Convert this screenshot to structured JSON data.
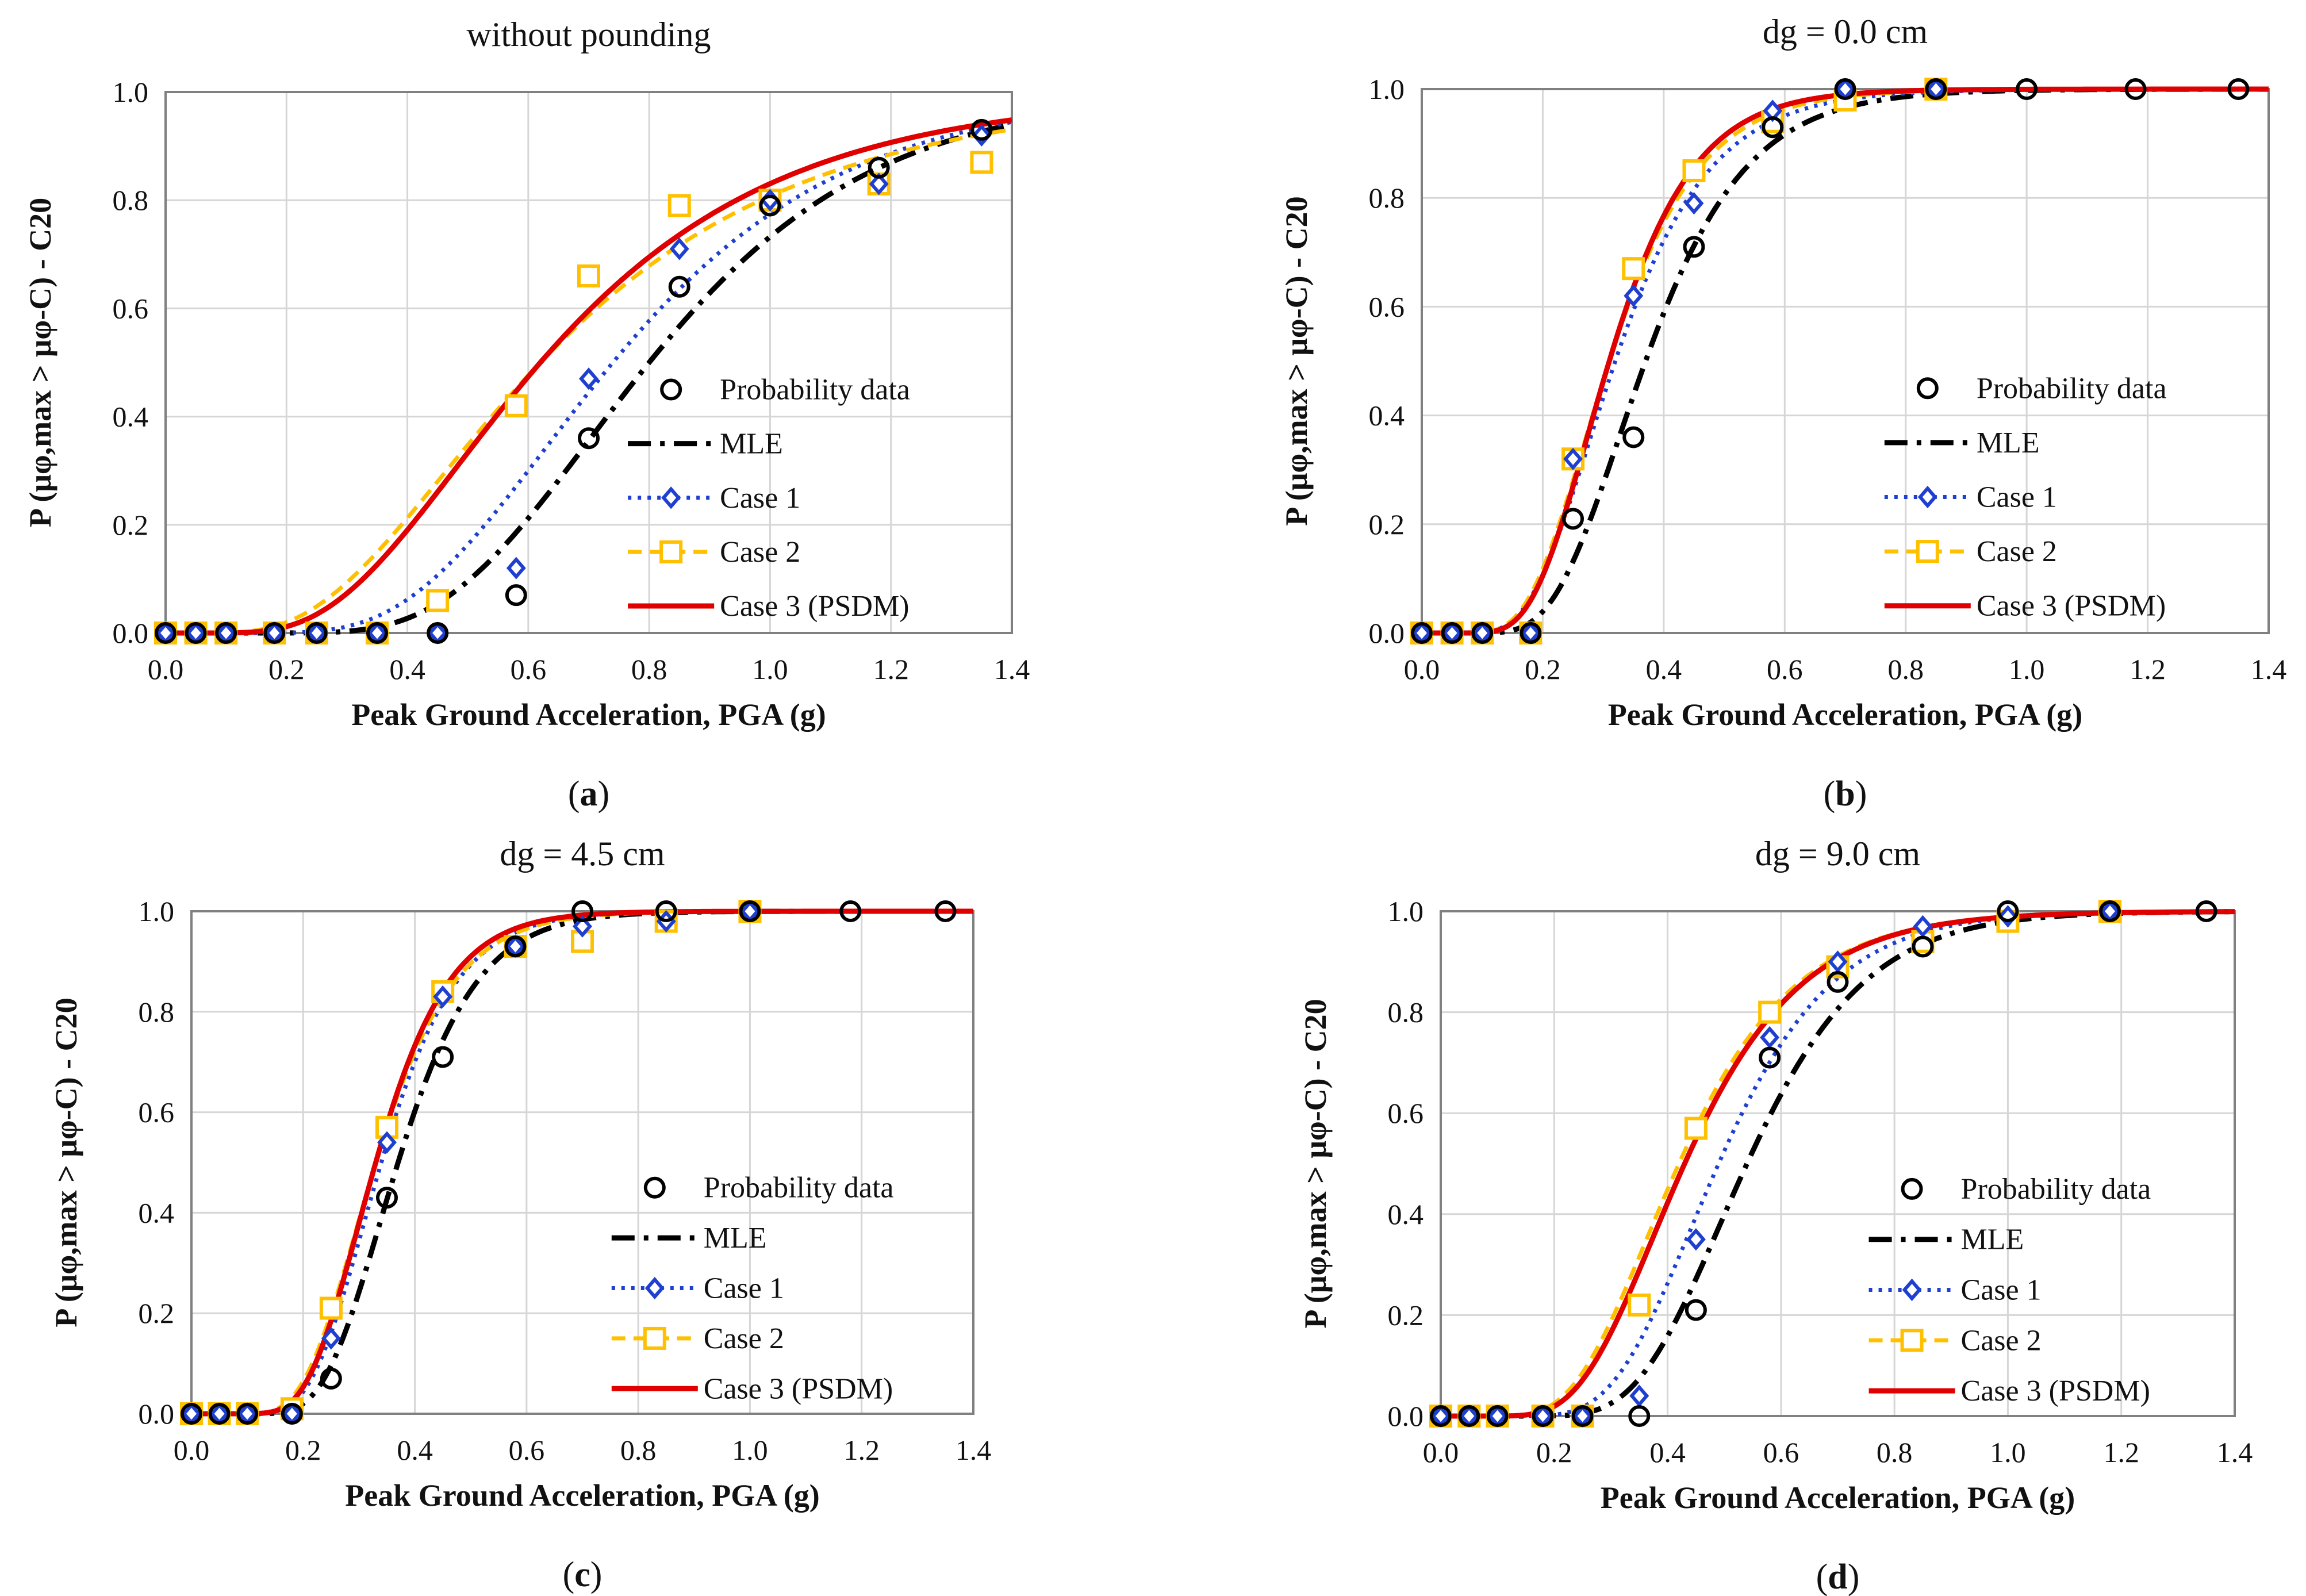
{
  "chart_data": [
    {
      "type": "line",
      "panel_label": "a",
      "title": "without pounding",
      "xlabel": "Peak Ground Acceleration, PGA (g)",
      "ylabel": "P (μφ,max > μφ-C) - C20",
      "xlim": [
        0.0,
        1.4
      ],
      "ylim": [
        0.0,
        1.0
      ],
      "xticks": [
        "0.0",
        "0.2",
        "0.4",
        "0.6",
        "0.8",
        "1.0",
        "1.2",
        "1.4"
      ],
      "yticks": [
        "0.0",
        "0.2",
        "0.4",
        "0.6",
        "0.8",
        "1.0"
      ],
      "grid": true,
      "legend_position": "right",
      "x": [
        0.0,
        0.05,
        0.1,
        0.18,
        0.25,
        0.35,
        0.45,
        0.58,
        0.7,
        0.85,
        1.0,
        1.18,
        1.35
      ],
      "series": [
        {
          "name": "Probability data",
          "kind": "marker",
          "values": [
            0.0,
            0.0,
            0.0,
            0.0,
            0.0,
            0.0,
            0.0,
            0.07,
            0.36,
            0.64,
            0.79,
            0.86,
            0.93
          ]
        },
        {
          "name": "MLE",
          "kind": "curve",
          "median": 0.8,
          "beta": 0.36
        },
        {
          "name": "Case 1",
          "kind": "curve+marker",
          "median": 0.74,
          "beta": 0.4,
          "values": [
            0.0,
            0.0,
            0.0,
            0.0,
            0.0,
            0.0,
            0.0,
            0.12,
            0.47,
            0.71,
            0.8,
            0.83,
            0.92
          ]
        },
        {
          "name": "Case 2",
          "kind": "curve+marker",
          "median": 0.62,
          "beta": 0.55,
          "values": [
            0.0,
            0.0,
            0.0,
            0.0,
            0.0,
            0.0,
            0.06,
            0.42,
            0.66,
            0.79,
            0.8,
            0.83,
            0.87
          ]
        },
        {
          "name": "Case 3 (PSDM)",
          "kind": "curve",
          "median": 0.62,
          "beta": 0.5
        }
      ]
    },
    {
      "type": "line",
      "panel_label": "b",
      "title": "dg = 0.0 cm",
      "xlabel": "Peak Ground Acceleration, PGA (g)",
      "ylabel": "P (μφ,max > μφ-C) - C20",
      "xlim": [
        0.0,
        1.4
      ],
      "ylim": [
        0.0,
        1.0
      ],
      "xticks": [
        "0.0",
        "0.2",
        "0.4",
        "0.6",
        "0.8",
        "1.0",
        "1.2",
        "1.4"
      ],
      "yticks": [
        "0.0",
        "0.2",
        "0.4",
        "0.6",
        "0.8",
        "1.0"
      ],
      "grid": true,
      "legend_position": "right",
      "x": [
        0.0,
        0.05,
        0.1,
        0.18,
        0.25,
        0.35,
        0.45,
        0.58,
        0.7,
        0.85,
        1.0,
        1.18,
        1.35
      ],
      "series": [
        {
          "name": "Probability data",
          "kind": "marker",
          "values": [
            0.0,
            0.0,
            0.0,
            0.0,
            0.21,
            0.36,
            0.71,
            0.93,
            1.0,
            1.0,
            1.0,
            1.0,
            1.0
          ]
        },
        {
          "name": "MLE",
          "kind": "curve",
          "median": 0.37,
          "beta": 0.35
        },
        {
          "name": "Case 1",
          "kind": "curve+marker",
          "median": 0.32,
          "beta": 0.38,
          "values": [
            0.0,
            0.0,
            0.0,
            0.0,
            0.32,
            0.62,
            0.79,
            0.96,
            1.0,
            1.0,
            null,
            null,
            null
          ]
        },
        {
          "name": "Case 2",
          "kind": "curve+marker",
          "median": 0.31,
          "beta": 0.37,
          "values": [
            0.0,
            0.0,
            0.0,
            0.0,
            0.32,
            0.67,
            0.85,
            0.94,
            0.98,
            1.0,
            null,
            null,
            null
          ]
        },
        {
          "name": "Case 3 (PSDM)",
          "kind": "curve",
          "median": 0.31,
          "beta": 0.35
        }
      ]
    },
    {
      "type": "line",
      "panel_label": "c",
      "title": "dg = 4.5 cm",
      "xlabel": "Peak Ground Acceleration, PGA (g)",
      "ylabel": "P (μφ,max > μφ-C) - C20",
      "xlim": [
        0.0,
        1.4
      ],
      "ylim": [
        0.0,
        1.0
      ],
      "xticks": [
        "0.0",
        "0.2",
        "0.4",
        "0.6",
        "0.8",
        "1.0",
        "1.2",
        "1.4"
      ],
      "yticks": [
        "0.0",
        "0.2",
        "0.4",
        "0.6",
        "0.8",
        "1.0"
      ],
      "grid": true,
      "legend_position": "right",
      "x": [
        0.0,
        0.05,
        0.1,
        0.18,
        0.25,
        0.35,
        0.45,
        0.58,
        0.7,
        0.85,
        1.0,
        1.18,
        1.35
      ],
      "series": [
        {
          "name": "Probability data",
          "kind": "marker",
          "values": [
            0.0,
            0.0,
            0.0,
            0.0,
            0.07,
            0.43,
            0.71,
            0.93,
            1.0,
            1.0,
            1.0,
            1.0,
            1.0
          ]
        },
        {
          "name": "MLE",
          "kind": "curve",
          "median": 0.37,
          "beta": 0.3
        },
        {
          "name": "Case 1",
          "kind": "curve+marker",
          "median": 0.34,
          "beta": 0.31,
          "values": [
            0.0,
            0.0,
            0.0,
            0.0,
            0.15,
            0.54,
            0.83,
            0.93,
            0.97,
            0.98,
            1.0,
            null,
            null
          ]
        },
        {
          "name": "Case 2",
          "kind": "curve+marker",
          "median": 0.33,
          "beta": 0.33,
          "values": [
            0.0,
            0.0,
            0.0,
            0.01,
            0.21,
            0.57,
            0.84,
            0.93,
            0.94,
            0.98,
            1.0,
            null,
            null
          ]
        },
        {
          "name": "Case 3 (PSDM)",
          "kind": "curve",
          "median": 0.33,
          "beta": 0.31
        }
      ]
    },
    {
      "type": "line",
      "panel_label": "d",
      "title": "dg = 9.0 cm",
      "xlabel": "Peak Ground Acceleration, PGA (g)",
      "ylabel": "P (μφ,max > μφ-C) - C20",
      "xlim": [
        0.0,
        1.4
      ],
      "ylim": [
        0.0,
        1.0
      ],
      "xticks": [
        "0.0",
        "0.2",
        "0.4",
        "0.6",
        "0.8",
        "1.0",
        "1.2",
        "1.4"
      ],
      "yticks": [
        "0.0",
        "0.2",
        "0.4",
        "0.6",
        "0.8",
        "1.0"
      ],
      "grid": true,
      "legend_position": "right",
      "x": [
        0.0,
        0.05,
        0.1,
        0.18,
        0.25,
        0.35,
        0.45,
        0.58,
        0.7,
        0.85,
        1.0,
        1.18,
        1.35
      ],
      "series": [
        {
          "name": "Probability data",
          "kind": "marker",
          "values": [
            0.0,
            0.0,
            0.0,
            0.0,
            0.0,
            0.0,
            0.21,
            0.71,
            0.86,
            0.93,
            1.0,
            1.0,
            1.0
          ]
        },
        {
          "name": "MLE",
          "kind": "curve",
          "median": 0.54,
          "beta": 0.3
        },
        {
          "name": "Case 1",
          "kind": "curve+marker",
          "median": 0.49,
          "beta": 0.32,
          "values": [
            0.0,
            0.0,
            0.0,
            0.0,
            0.0,
            0.04,
            0.35,
            0.75,
            0.9,
            0.97,
            0.99,
            1.0,
            null
          ]
        },
        {
          "name": "Case 2",
          "kind": "curve+marker",
          "median": 0.42,
          "beta": 0.38,
          "values": [
            0.0,
            0.0,
            0.0,
            0.0,
            0.0,
            0.22,
            0.57,
            0.8,
            0.89,
            0.94,
            0.98,
            1.0,
            null
          ]
        },
        {
          "name": "Case 3 (PSDM)",
          "kind": "curve",
          "median": 0.43,
          "beta": 0.37
        }
      ]
    }
  ],
  "colors": {
    "probability_data": "#000000",
    "mle": "#000000",
    "case1": "#1f3fd0",
    "case2": "#ffc000",
    "case3": "#e00000"
  }
}
